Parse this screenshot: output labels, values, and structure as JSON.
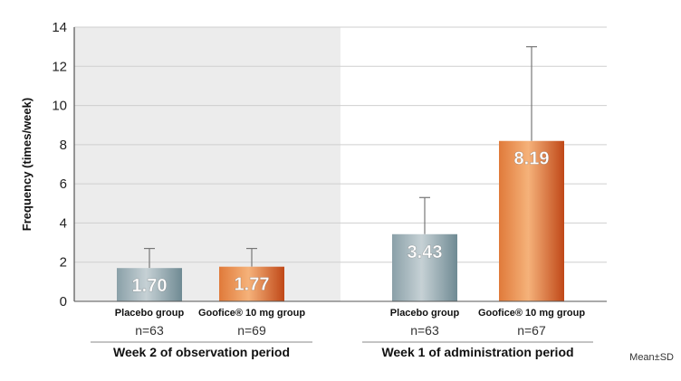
{
  "chart_data": {
    "type": "bar",
    "ylabel": "Frequency (times/week)",
    "ylim": [
      0,
      14
    ],
    "yticks": [
      "0",
      "2",
      "4",
      "6",
      "8",
      "10",
      "12",
      "14"
    ],
    "grid": true,
    "groups": [
      {
        "label": "Week 2 of observation period",
        "shaded": true,
        "bars": [
          {
            "category": "Placebo group",
            "value": 1.7,
            "value_label": "1.70",
            "sd_upper": 2.7,
            "n": "n=63",
            "color": "grey"
          },
          {
            "category": "Goofice® 10 mg group",
            "value": 1.77,
            "value_label": "1.77",
            "sd_upper": 2.7,
            "n": "n=69",
            "color": "orange"
          }
        ]
      },
      {
        "label": "Week 1 of administration period",
        "shaded": false,
        "bars": [
          {
            "category": "Placebo group",
            "value": 3.43,
            "value_label": "3.43",
            "sd_upper": 5.3,
            "n": "n=63",
            "color": "grey"
          },
          {
            "category": "Goofice® 10 mg group",
            "value": 8.19,
            "value_label": "8.19",
            "sd_upper": 13.0,
            "n": "n=67",
            "color": "orange"
          }
        ]
      }
    ],
    "note": "Mean±SD"
  },
  "colors": {
    "shade": "#ececec",
    "grid": "#cfcfcf",
    "axis": "#555555",
    "grey_dark": "#6f8a93",
    "grey_light": "#b9c6cb",
    "orange_dark": "#c8521f",
    "orange_light": "#f2a56b",
    "errorbar": "#777777"
  }
}
